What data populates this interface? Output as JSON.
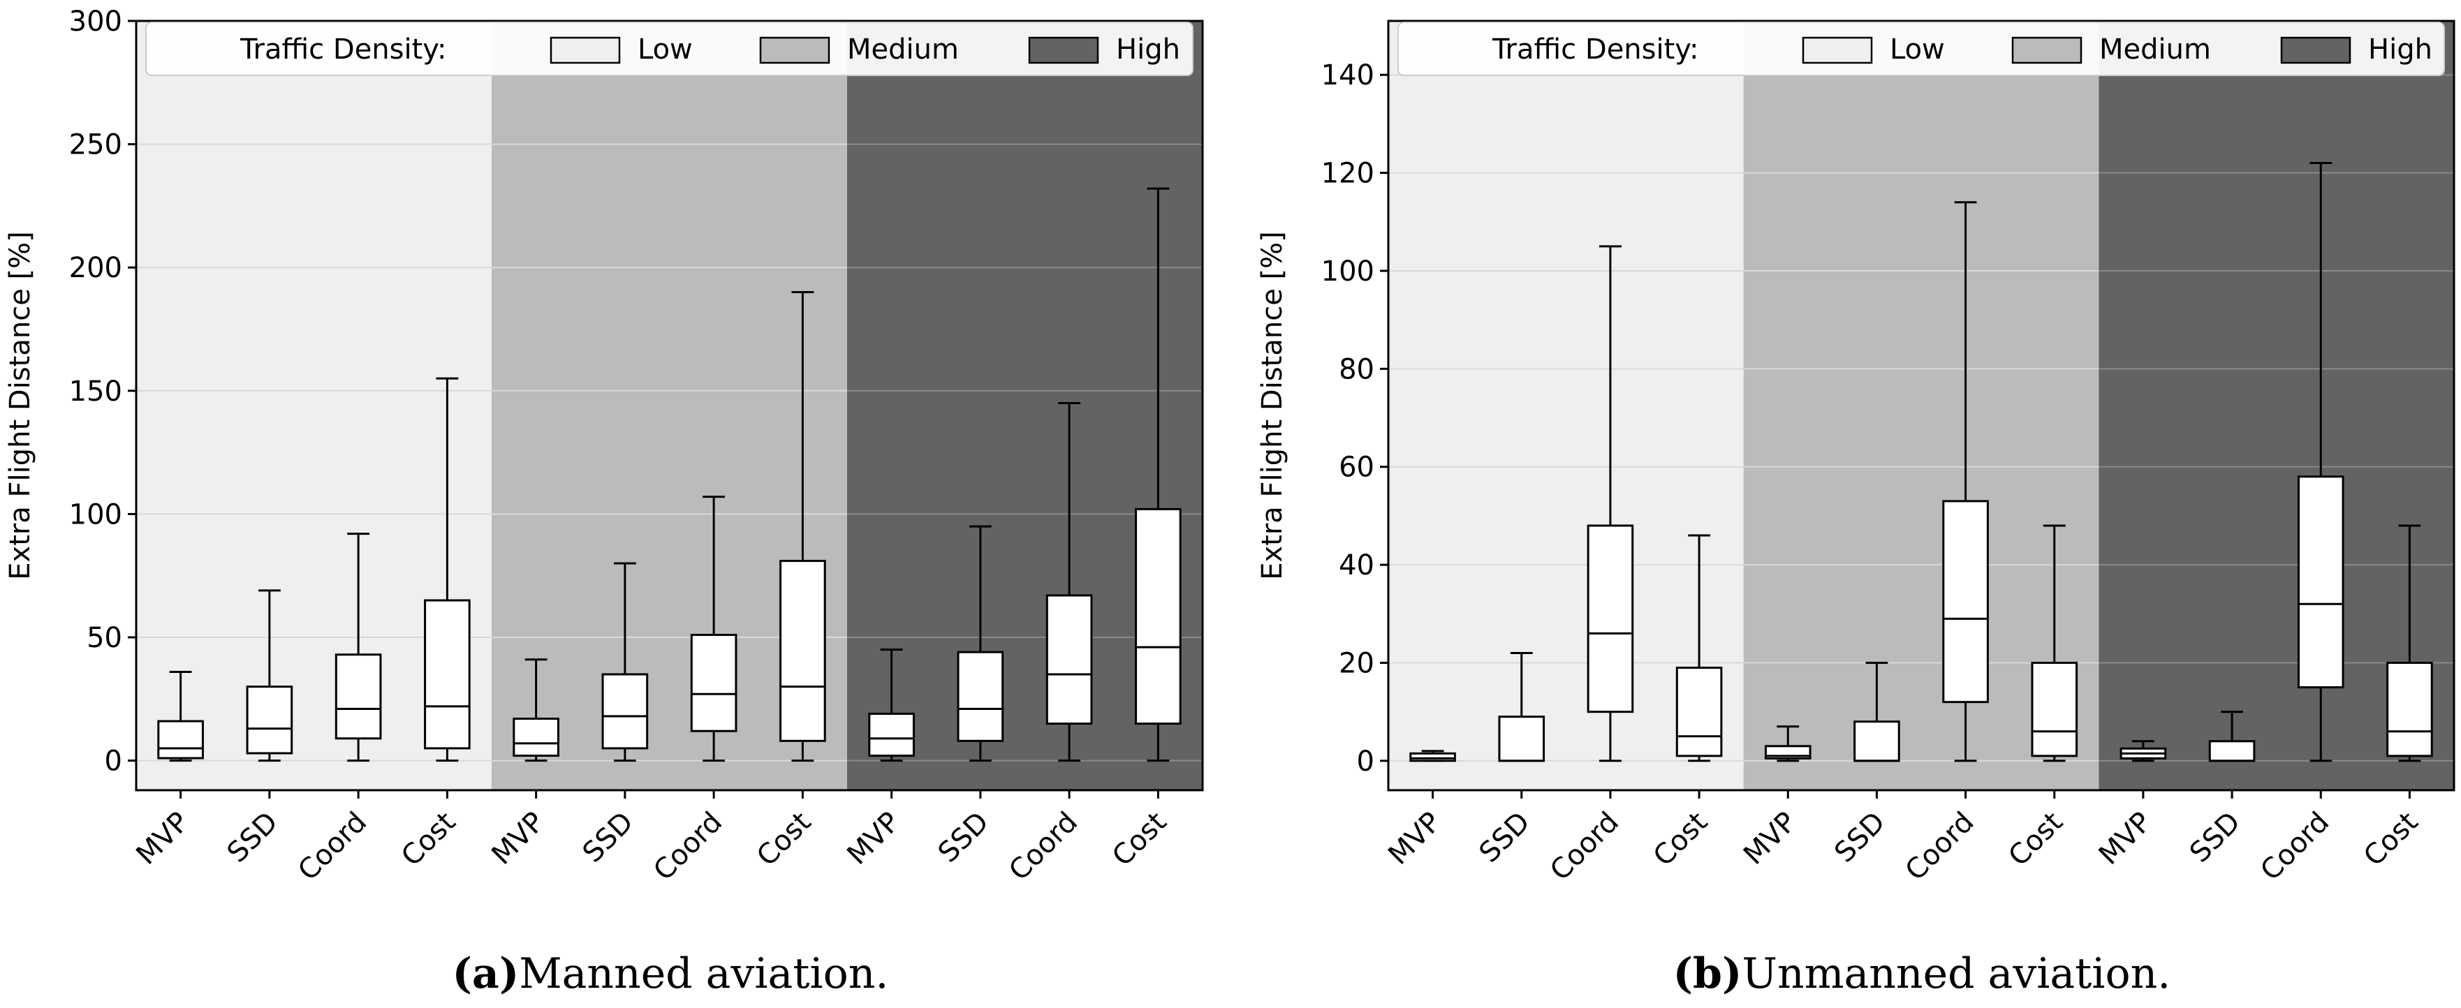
{
  "colors": {
    "low_bg": "#efefef",
    "medium_bg": "#bbbbbb",
    "high_bg": "#636363",
    "box_fill": "#ffffff",
    "stroke": "#000000",
    "grid_light": "#d9d9d9",
    "grid_dark": "#8a8a8a"
  },
  "chart_data": [
    {
      "id": "a",
      "type": "boxplot",
      "caption_letter": "(a)",
      "caption_text": "Manned aviation.",
      "ylabel": "Extra Flight Distance [%]",
      "ylim": [
        -12,
        300
      ],
      "yticks": [
        0,
        50,
        100,
        150,
        200,
        250,
        300
      ],
      "grid": true,
      "legend": {
        "position": "top",
        "title": "Traffic Density:",
        "entries": [
          "Low",
          "Medium",
          "High"
        ]
      },
      "groups": [
        "Low",
        "Medium",
        "High"
      ],
      "categories": [
        "MVP",
        "SSD",
        "Coord",
        "Cost",
        "MVP",
        "SSD",
        "Coord",
        "Cost",
        "MVP",
        "SSD",
        "Coord",
        "Cost"
      ],
      "boxes": [
        {
          "whisker_low": 0,
          "q1": 1,
          "median": 5,
          "q3": 16,
          "whisker_high": 36
        },
        {
          "whisker_low": 0,
          "q1": 3,
          "median": 13,
          "q3": 30,
          "whisker_high": 69
        },
        {
          "whisker_low": 0,
          "q1": 9,
          "median": 21,
          "q3": 43,
          "whisker_high": 92
        },
        {
          "whisker_low": 0,
          "q1": 5,
          "median": 22,
          "q3": 65,
          "whisker_high": 155
        },
        {
          "whisker_low": 0,
          "q1": 2,
          "median": 7,
          "q3": 17,
          "whisker_high": 41
        },
        {
          "whisker_low": 0,
          "q1": 5,
          "median": 18,
          "q3": 35,
          "whisker_high": 80
        },
        {
          "whisker_low": 0,
          "q1": 12,
          "median": 27,
          "q3": 51,
          "whisker_high": 107
        },
        {
          "whisker_low": 0,
          "q1": 8,
          "median": 30,
          "q3": 81,
          "whisker_high": 190
        },
        {
          "whisker_low": 0,
          "q1": 2,
          "median": 9,
          "q3": 19,
          "whisker_high": 45
        },
        {
          "whisker_low": 0,
          "q1": 8,
          "median": 21,
          "q3": 44,
          "whisker_high": 95
        },
        {
          "whisker_low": 0,
          "q1": 15,
          "median": 35,
          "q3": 67,
          "whisker_high": 145
        },
        {
          "whisker_low": 0,
          "q1": 15,
          "median": 46,
          "q3": 102,
          "whisker_high": 232
        }
      ]
    },
    {
      "id": "b",
      "type": "boxplot",
      "caption_letter": "(b)",
      "caption_text": "Unmanned aviation.",
      "ylabel": "Extra Flight Distance [%]",
      "ylim": [
        -6,
        151
      ],
      "yticks": [
        0,
        20,
        40,
        60,
        80,
        100,
        120,
        140
      ],
      "grid": true,
      "legend": {
        "position": "top",
        "title": "Traffic Density:",
        "entries": [
          "Low",
          "Medium",
          "High"
        ]
      },
      "groups": [
        "Low",
        "Medium",
        "High"
      ],
      "categories": [
        "MVP",
        "SSD",
        "Coord",
        "Cost",
        "MVP",
        "SSD",
        "Coord",
        "Cost",
        "MVP",
        "SSD",
        "Coord",
        "Cost"
      ],
      "boxes": [
        {
          "whisker_low": 0,
          "q1": 0,
          "median": 0.5,
          "q3": 1.5,
          "whisker_high": 2
        },
        {
          "whisker_low": 0,
          "q1": 0,
          "median": 0,
          "q3": 9,
          "whisker_high": 22
        },
        {
          "whisker_low": 0,
          "q1": 10,
          "median": 26,
          "q3": 48,
          "whisker_high": 105
        },
        {
          "whisker_low": 0,
          "q1": 1,
          "median": 5,
          "q3": 19,
          "whisker_high": 46
        },
        {
          "whisker_low": 0,
          "q1": 0.5,
          "median": 1,
          "q3": 3,
          "whisker_high": 7
        },
        {
          "whisker_low": 0,
          "q1": 0,
          "median": 0,
          "q3": 8,
          "whisker_high": 20
        },
        {
          "whisker_low": 0,
          "q1": 12,
          "median": 29,
          "q3": 53,
          "whisker_high": 114
        },
        {
          "whisker_low": 0,
          "q1": 1,
          "median": 6,
          "q3": 20,
          "whisker_high": 48
        },
        {
          "whisker_low": 0,
          "q1": 0.5,
          "median": 1.5,
          "q3": 2.5,
          "whisker_high": 4
        },
        {
          "whisker_low": 0,
          "q1": 0,
          "median": 0,
          "q3": 4,
          "whisker_high": 10
        },
        {
          "whisker_low": 0,
          "q1": 15,
          "median": 32,
          "q3": 58,
          "whisker_high": 122
        },
        {
          "whisker_low": 0,
          "q1": 1,
          "median": 6,
          "q3": 20,
          "whisker_high": 48
        }
      ]
    }
  ]
}
